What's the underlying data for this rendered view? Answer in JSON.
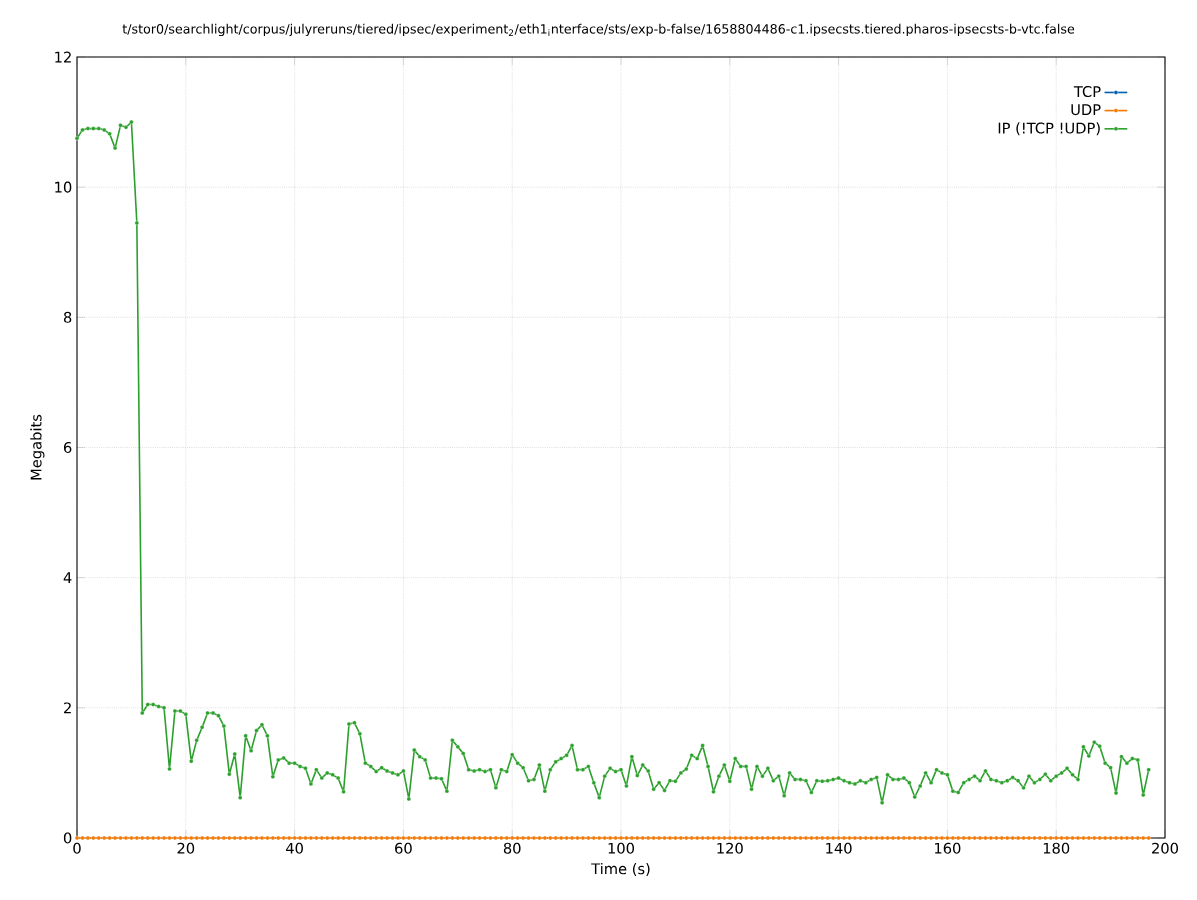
{
  "chart_data": {
    "type": "line",
    "title": "t/stor0/searchlight/corpus/julyreruns/tiered/ipsec/experiment$_{2}$/eth1$_{i}$nterface/sts/exp-b-false/1658804486-c1.ipsecsts.tiered.pharos-ipsecsts-b-vtc.false",
    "xlabel": "Time (s)",
    "ylabel": "Megabits",
    "x": [
      0,
      1,
      2,
      3,
      4,
      5,
      6,
      7,
      8,
      9,
      10,
      11,
      12,
      13,
      14,
      15,
      16,
      17,
      18,
      19,
      20,
      21,
      22,
      23,
      24,
      25,
      26,
      27,
      28,
      29,
      30,
      31,
      32,
      33,
      34,
      35,
      36,
      37,
      38,
      39,
      40,
      41,
      42,
      43,
      44,
      45,
      46,
      47,
      48,
      49,
      50,
      51,
      52,
      53,
      54,
      55,
      56,
      57,
      58,
      59,
      60,
      61,
      62,
      63,
      64,
      65,
      66,
      67,
      68,
      69,
      70,
      71,
      72,
      73,
      74,
      75,
      76,
      77,
      78,
      79,
      80,
      81,
      82,
      83,
      84,
      85,
      86,
      87,
      88,
      89,
      90,
      91,
      92,
      93,
      94,
      95,
      96,
      97,
      98,
      99,
      100,
      101,
      102,
      103,
      104,
      105,
      106,
      107,
      108,
      109,
      110,
      111,
      112,
      113,
      114,
      115,
      116,
      117,
      118,
      119,
      120,
      121,
      122,
      123,
      124,
      125,
      126,
      127,
      128,
      129,
      130,
      131,
      132,
      133,
      134,
      135,
      136,
      137,
      138,
      139,
      140,
      141,
      142,
      143,
      144,
      145,
      146,
      147,
      148,
      149,
      150,
      151,
      152,
      153,
      154,
      155,
      156,
      157,
      158,
      159,
      160,
      161,
      162,
      163,
      164,
      165,
      166,
      167,
      168,
      169,
      170,
      171,
      172,
      173,
      174,
      175,
      176,
      177,
      178,
      179,
      180,
      181,
      182,
      183,
      184,
      185,
      186,
      187,
      188,
      189,
      190,
      191,
      192,
      193,
      194,
      195,
      196,
      197
    ],
    "series": [
      {
        "name": "TCP",
        "color": "#0060ad",
        "values": [
          null,
          null,
          null,
          null,
          null,
          null,
          null,
          null,
          null,
          null,
          null,
          null,
          null,
          null,
          null,
          null,
          null,
          null,
          null,
          null,
          null,
          null,
          null,
          null,
          null,
          null,
          null,
          null,
          null,
          null,
          null,
          null,
          null,
          null,
          null,
          null,
          null,
          null,
          null,
          null,
          null,
          null,
          null,
          null,
          null,
          null,
          null,
          null,
          null,
          null,
          null,
          null,
          null,
          null,
          null,
          null,
          null,
          null,
          null,
          null,
          null,
          null,
          null,
          null,
          null,
          null,
          null,
          null,
          null,
          null,
          null,
          null,
          null,
          null,
          null,
          null,
          null,
          null,
          null,
          null,
          null,
          null,
          null,
          null,
          null,
          null,
          null,
          null,
          null,
          null,
          null,
          null,
          null,
          null,
          null,
          null,
          null,
          null,
          null,
          null,
          null,
          null,
          null,
          null,
          null,
          null,
          null,
          null,
          null,
          null,
          null,
          null,
          null,
          null,
          null,
          null,
          null,
          null,
          null,
          null,
          null,
          null,
          null,
          null,
          null,
          null,
          null,
          null,
          null,
          null,
          null,
          null,
          null,
          null,
          null,
          null,
          null,
          null,
          null,
          null,
          null,
          null,
          null,
          null,
          null,
          null,
          null,
          null,
          null,
          null,
          null,
          null,
          null,
          null,
          null,
          null,
          null,
          null,
          null,
          null,
          null,
          null,
          null,
          null,
          null,
          null,
          null,
          null,
          null,
          null,
          null,
          null,
          null,
          null,
          null,
          null,
          null,
          null,
          null,
          null,
          null,
          null,
          null,
          null,
          null,
          null,
          null,
          null,
          null,
          null,
          null,
          null,
          null,
          null,
          null,
          null,
          null,
          null
        ]
      },
      {
        "name": "UDP",
        "color": "#f57900",
        "values": [
          0,
          0,
          0,
          0,
          0,
          0,
          0,
          0,
          0,
          0,
          0,
          0,
          0,
          0,
          0,
          0,
          0,
          0,
          0,
          0,
          0,
          0,
          0,
          0,
          0,
          0,
          0,
          0,
          0,
          0,
          0,
          0,
          0,
          0,
          0,
          0,
          0,
          0,
          0,
          0,
          0,
          0,
          0,
          0,
          0,
          0,
          0,
          0,
          0,
          0,
          0,
          0,
          0,
          0,
          0,
          0,
          0,
          0,
          0,
          0,
          0,
          0,
          0,
          0,
          0,
          0,
          0,
          0,
          0,
          0,
          0,
          0,
          0,
          0,
          0,
          0,
          0,
          0,
          0,
          0,
          0,
          0,
          0,
          0,
          0,
          0,
          0,
          0,
          0,
          0,
          0,
          0,
          0,
          0,
          0,
          0,
          0,
          0,
          0,
          0,
          0,
          0,
          0,
          0,
          0,
          0,
          0,
          0,
          0,
          0,
          0,
          0,
          0,
          0,
          0,
          0,
          0,
          0,
          0,
          0,
          0,
          0,
          0,
          0,
          0,
          0,
          0,
          0,
          0,
          0,
          0,
          0,
          0,
          0,
          0,
          0,
          0,
          0,
          0,
          0,
          0,
          0,
          0,
          0,
          0,
          0,
          0,
          0,
          0,
          0,
          0,
          0,
          0,
          0,
          0,
          0,
          0,
          0,
          0,
          0,
          0,
          0,
          0,
          0,
          0,
          0,
          0,
          0,
          0,
          0,
          0,
          0,
          0,
          0,
          0,
          0,
          0,
          0,
          0,
          0,
          0,
          0,
          0,
          0,
          0,
          0,
          0,
          0,
          0,
          0,
          0,
          0,
          0,
          0,
          0,
          0,
          0,
          0
        ]
      },
      {
        "name": "IP (!TCP  !UDP)",
        "color": "#2ca02c",
        "values": [
          10.75,
          10.88,
          10.9,
          10.9,
          10.9,
          10.88,
          10.82,
          10.6,
          10.95,
          10.92,
          11.0,
          9.45,
          1.92,
          2.05,
          2.05,
          2.02,
          2.0,
          1.06,
          1.95,
          1.95,
          1.9,
          1.18,
          1.5,
          1.7,
          1.92,
          1.92,
          1.88,
          1.72,
          0.98,
          1.29,
          0.62,
          1.57,
          1.34,
          1.65,
          1.74,
          1.57,
          0.94,
          1.2,
          1.23,
          1.15,
          1.15,
          1.1,
          1.07,
          0.83,
          1.05,
          0.92,
          1.0,
          0.97,
          0.92,
          0.71,
          1.75,
          1.77,
          1.6,
          1.15,
          1.1,
          1.02,
          1.08,
          1.03,
          1.0,
          0.97,
          1.03,
          0.6,
          1.35,
          1.25,
          1.2,
          0.92,
          0.92,
          0.91,
          0.72,
          1.5,
          1.4,
          1.3,
          1.05,
          1.03,
          1.05,
          1.02,
          1.05,
          0.77,
          1.05,
          1.02,
          1.28,
          1.15,
          1.08,
          0.88,
          0.9,
          1.12,
          0.72,
          1.05,
          1.17,
          1.22,
          1.27,
          1.42,
          1.05,
          1.05,
          1.1,
          0.85,
          0.62,
          0.95,
          1.07,
          1.02,
          1.05,
          0.8,
          1.25,
          0.96,
          1.12,
          1.03,
          0.75,
          0.85,
          0.73,
          0.88,
          0.87,
          1.0,
          1.06,
          1.27,
          1.22,
          1.42,
          1.1,
          0.71,
          0.95,
          1.12,
          0.87,
          1.22,
          1.1,
          1.1,
          0.75,
          1.1,
          0.95,
          1.07,
          0.88,
          0.95,
          0.65,
          1.0,
          0.9,
          0.9,
          0.88,
          0.7,
          0.88,
          0.87,
          0.88,
          0.9,
          0.92,
          0.88,
          0.85,
          0.83,
          0.88,
          0.85,
          0.9,
          0.93,
          0.54,
          0.97,
          0.9,
          0.9,
          0.92,
          0.85,
          0.63,
          0.8,
          1.0,
          0.85,
          1.05,
          1.0,
          0.97,
          0.72,
          0.7,
          0.85,
          0.9,
          0.95,
          0.88,
          1.03,
          0.9,
          0.88,
          0.85,
          0.88,
          0.93,
          0.88,
          0.77,
          0.95,
          0.85,
          0.9,
          0.98,
          0.88,
          0.95,
          1.0,
          1.07,
          0.97,
          0.9,
          1.4,
          1.26,
          1.47,
          1.41,
          1.15,
          1.08,
          0.69,
          1.25,
          1.15,
          1.22,
          1.2,
          0.66,
          1.05
        ]
      }
    ],
    "xlim": [
      0,
      200
    ],
    "xticks": [
      0,
      20,
      40,
      60,
      80,
      100,
      120,
      140,
      160,
      180,
      200
    ],
    "ylim": [
      0,
      12
    ],
    "yticks": [
      0,
      2,
      4,
      6,
      8,
      10,
      12
    ],
    "grid": true,
    "legend": "top right",
    "marker": "circle",
    "line_style": "solid"
  }
}
